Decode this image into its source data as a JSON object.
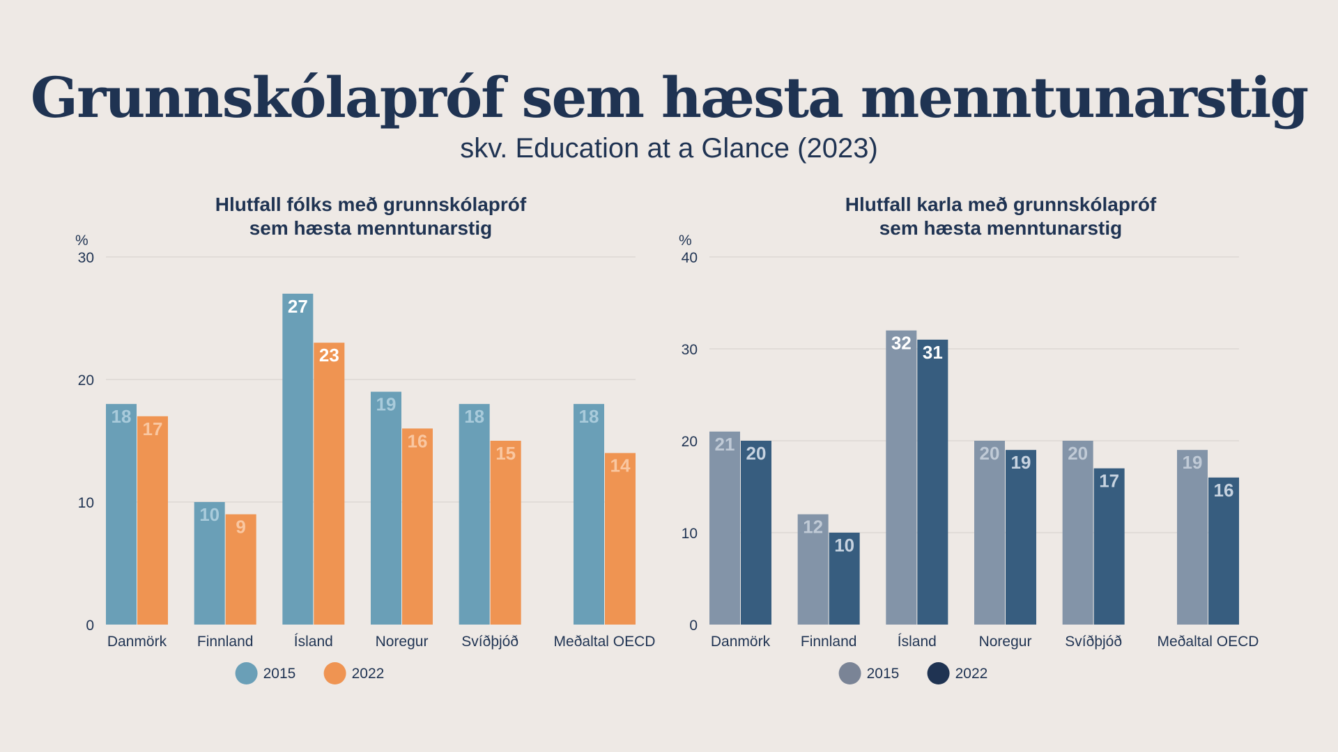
{
  "title": "Grunnskólapróf sem hæsta menntunarstig",
  "subtitle": "skv. Education at a Glance (2023)",
  "chart_data": [
    {
      "type": "bar",
      "title_lines": [
        "Hlutfall fólks með grunnskólapróf",
        "sem hæsta menntunarstig"
      ],
      "ylabel": "%",
      "ylim": [
        0,
        30
      ],
      "yticks": [
        0,
        10,
        20,
        30
      ],
      "grid": true,
      "legend_position": "bottom",
      "categories": [
        "Danmörk",
        "Finnland",
        "Ísland",
        "Noregur",
        "Svíðþjóð",
        "Meðaltal OECD"
      ],
      "series": [
        {
          "name": "2015",
          "values": [
            18,
            10,
            27,
            19,
            18,
            18
          ],
          "color": "#6a9fb7",
          "label_color": "#a9cbdb",
          "highlight_color": "#ffffff"
        },
        {
          "name": "2022",
          "values": [
            17,
            9,
            23,
            16,
            15,
            14
          ],
          "color": "#ef9452",
          "label_color": "#f9c7a1",
          "highlight_color": "#ffffff"
        }
      ],
      "highlight_category": "Ísland"
    },
    {
      "type": "bar",
      "title_lines": [
        "Hlutfall karla með grunnskólapróf",
        "sem hæsta menntunarstig"
      ],
      "ylabel": "%",
      "ylim": [
        0,
        40
      ],
      "yticks": [
        0,
        10,
        20,
        30,
        40
      ],
      "grid": true,
      "legend_position": "bottom",
      "categories": [
        "Danmörk",
        "Finnland",
        "Ísland",
        "Noregur",
        "Svíðþjóð",
        "Meðaltal OECD"
      ],
      "series": [
        {
          "name": "2015",
          "values": [
            21,
            12,
            32,
            20,
            20,
            19
          ],
          "color": "#8394a8",
          "label_color": "#c0cad6",
          "highlight_color": "#ffffff",
          "legend_color": "#7a8496"
        },
        {
          "name": "2022",
          "values": [
            20,
            10,
            31,
            19,
            17,
            16
          ],
          "color": "#375d7f",
          "label_color": "#c7d3e0",
          "highlight_color": "#ffffff",
          "legend_color": "#1f3352"
        }
      ],
      "highlight_category": "Ísland"
    }
  ]
}
